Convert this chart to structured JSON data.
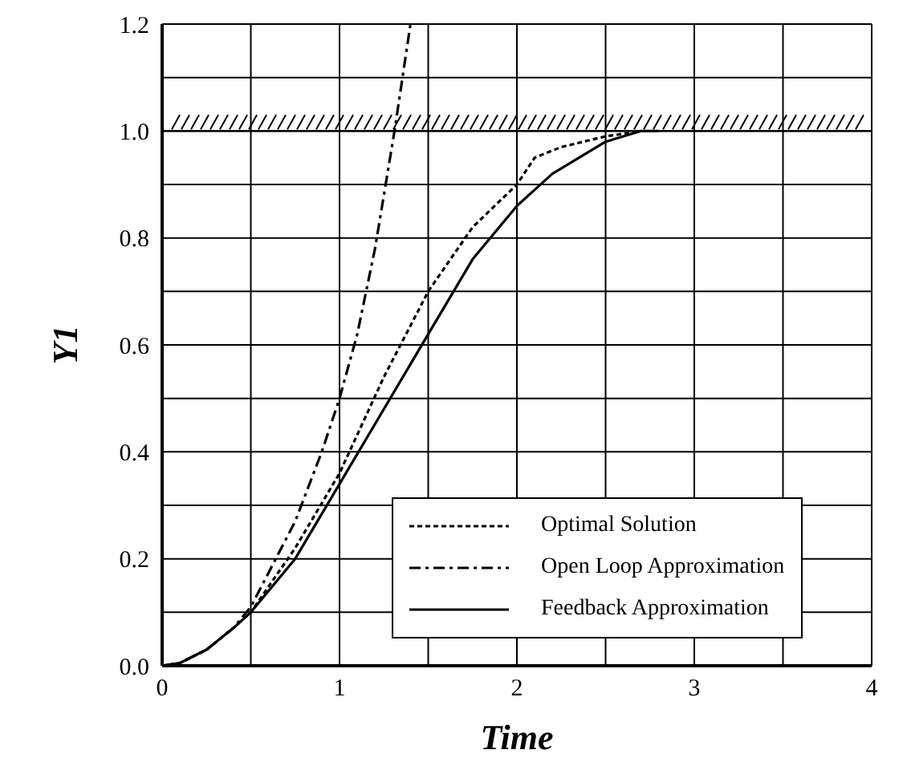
{
  "chart_data": {
    "type": "line",
    "xlabel": "Time",
    "ylabel": "Y1",
    "xlim": [
      0,
      4
    ],
    "xticks": [
      0,
      1,
      2,
      3,
      4
    ],
    "ylim": [
      0,
      1.2
    ],
    "yticks": [
      {
        "value": 0,
        "label": "0.0"
      },
      0.2,
      0.4,
      0.6,
      0.8,
      {
        "value": 1,
        "label": "1.0"
      },
      1.2
    ],
    "grid": true,
    "legend": "bottom right",
    "marker": "none",
    "ref_lines": [
      {
        "axis": "y",
        "value": 1.0,
        "label": null,
        "line_style": "solid"
      }
    ],
    "series": [
      {
        "name": "Optimal Solution",
        "color": "#000000",
        "line_style": "dotted",
        "x": [
          0,
          0.1,
          0.25,
          0.4,
          0.5,
          0.75,
          1,
          1.25,
          1.5,
          1.75,
          2,
          2.1,
          2.25,
          2.5,
          2.7
        ],
        "values": [
          0,
          0.005,
          0.03,
          0.07,
          0.1,
          0.22,
          0.36,
          0.54,
          0.7,
          0.82,
          0.9,
          0.95,
          0.97,
          0.99,
          1.0
        ]
      },
      {
        "name": "Open Loop Approximation",
        "color": "#000000",
        "line_style": "dashed",
        "x": [
          0,
          0.1,
          0.25,
          0.4,
          0.5,
          0.75,
          0.9,
          1,
          1.1,
          1.2,
          1.31,
          1.4
        ],
        "values": [
          0,
          0.005,
          0.03,
          0.07,
          0.11,
          0.27,
          0.4,
          0.5,
          0.62,
          0.78,
          1.0,
          1.2
        ]
      },
      {
        "name": "Feedback Approximation",
        "color": "#000000",
        "line_style": "solid",
        "x": [
          0,
          0.1,
          0.25,
          0.4,
          0.5,
          0.75,
          1,
          1.25,
          1.5,
          1.75,
          2,
          2.2,
          2.5,
          2.7,
          2.8
        ],
        "values": [
          0,
          0.005,
          0.03,
          0.07,
          0.1,
          0.2,
          0.34,
          0.48,
          0.62,
          0.76,
          0.86,
          0.92,
          0.98,
          1.0,
          1.0
        ]
      }
    ]
  }
}
